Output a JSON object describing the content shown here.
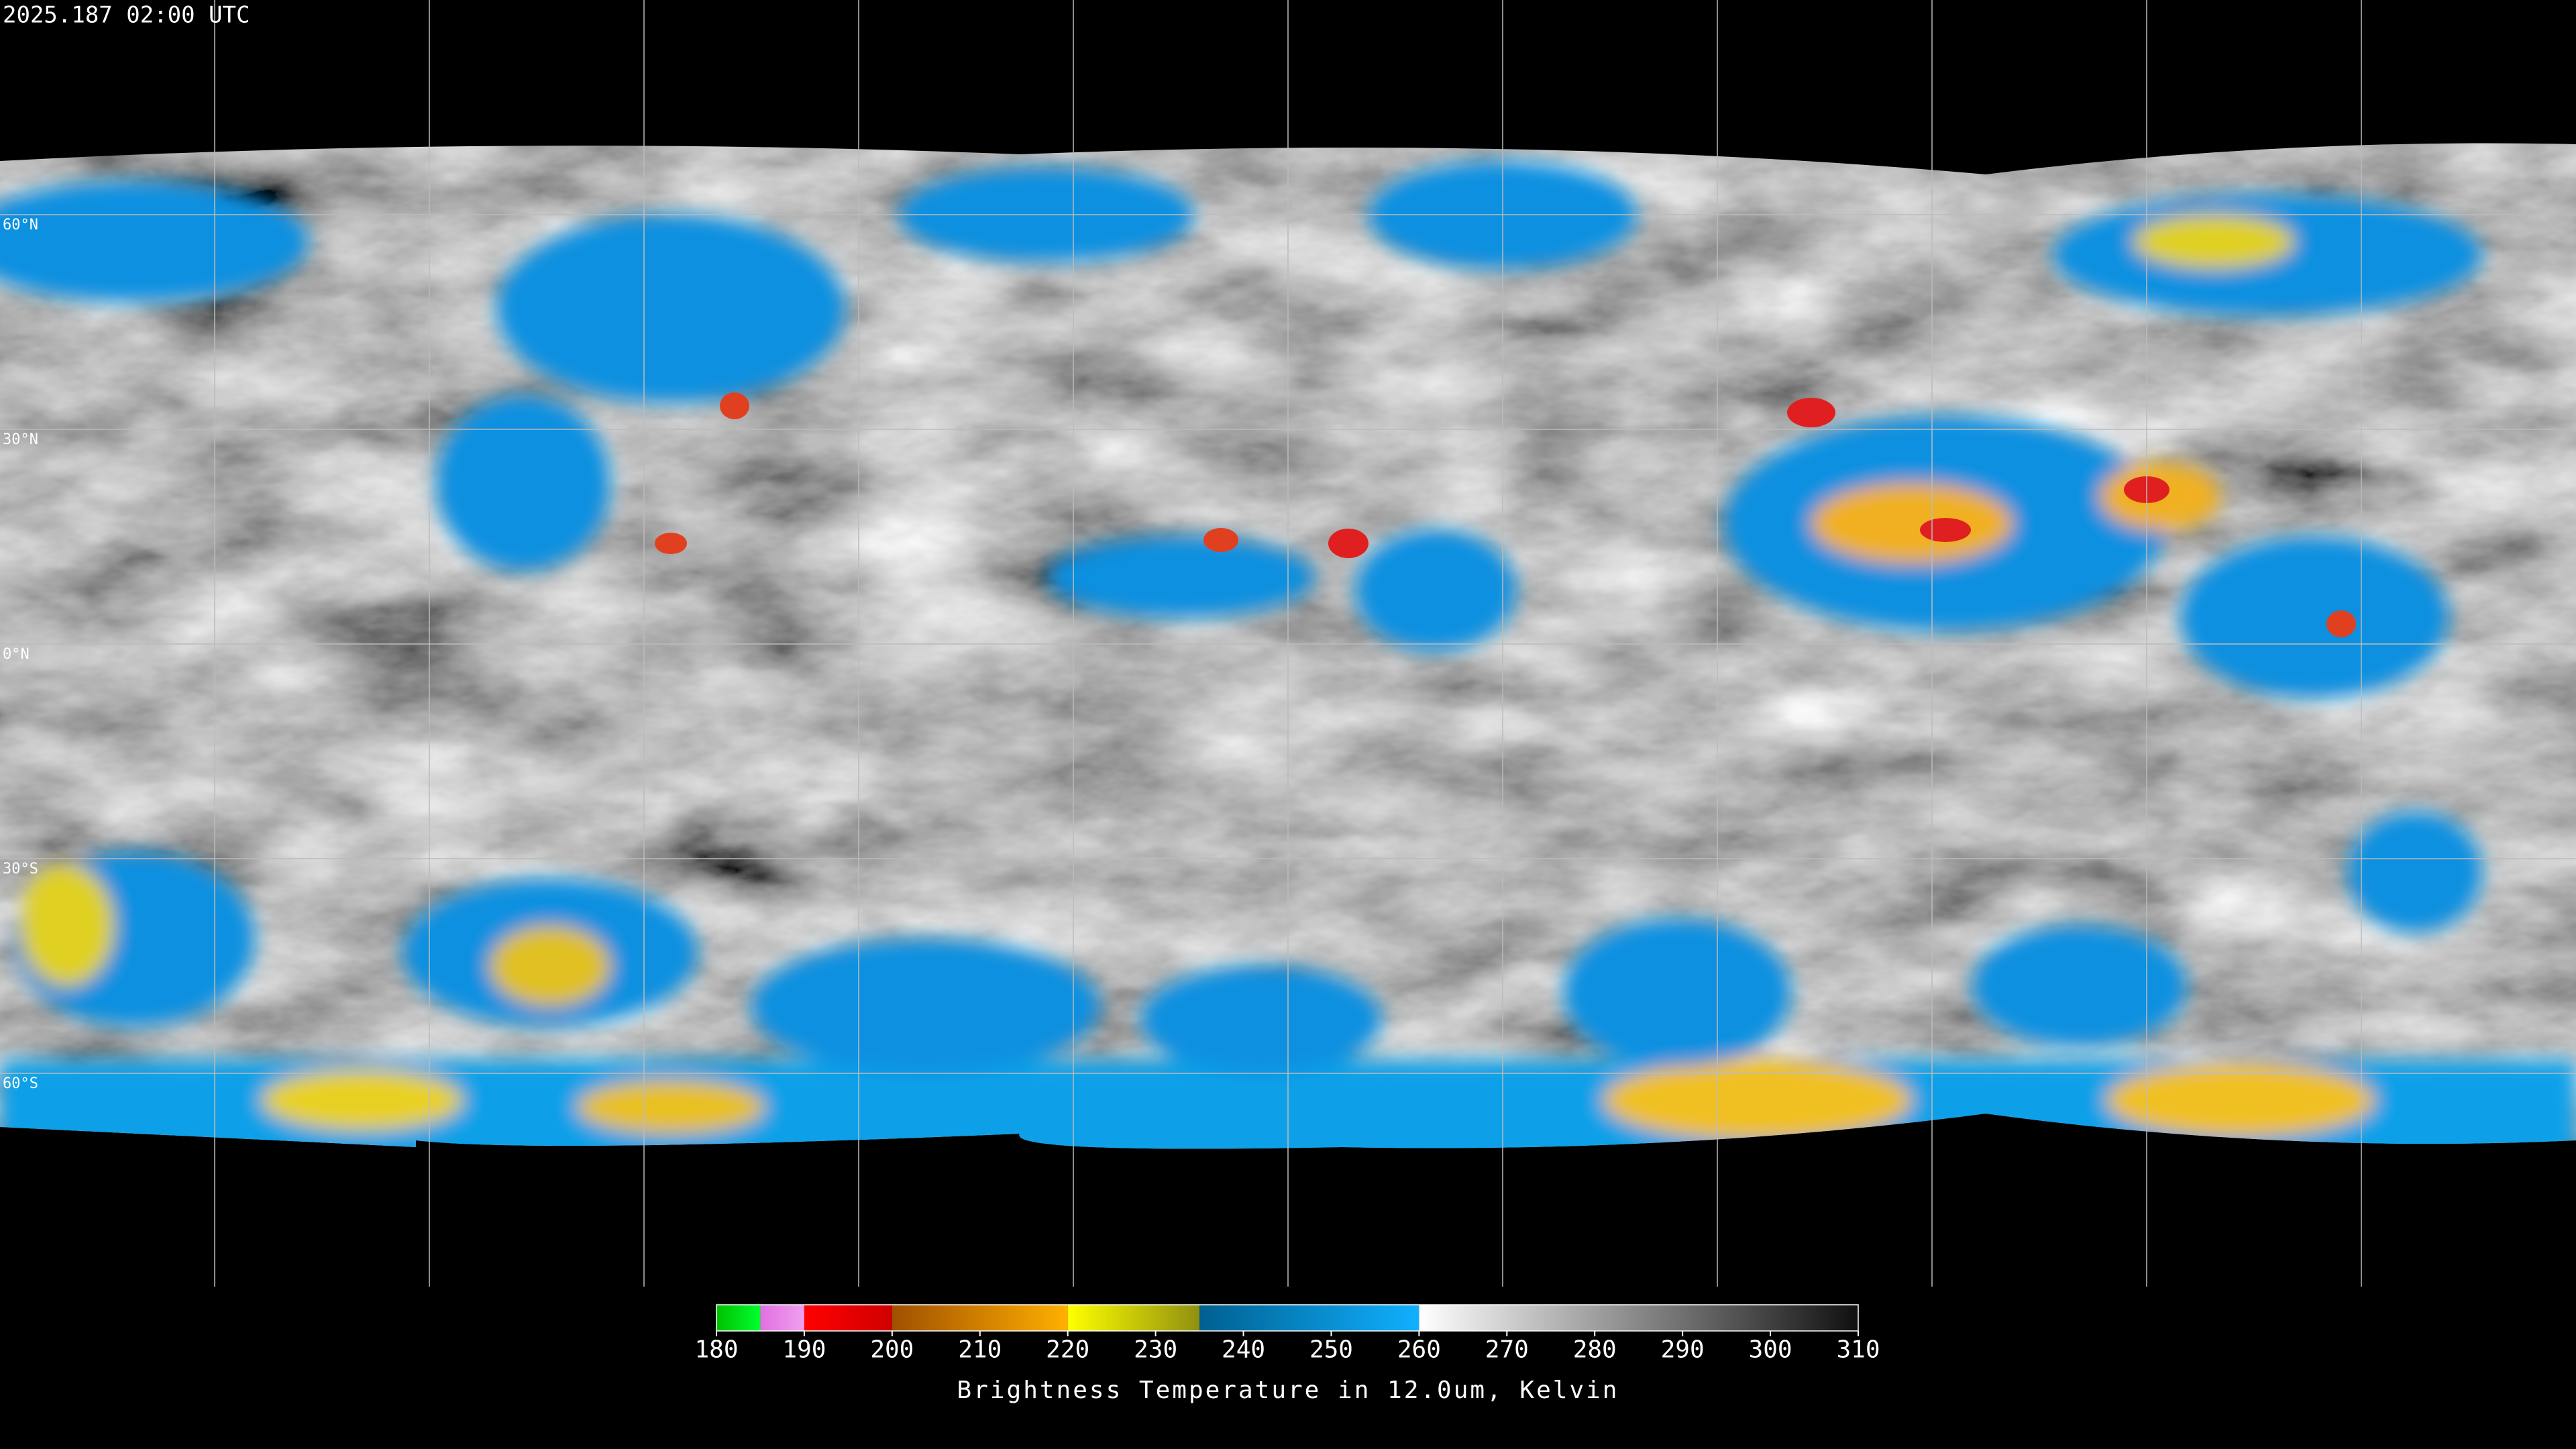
{
  "header": {
    "timestamp": "2025.187 02:00 UTC"
  },
  "map": {
    "projection": "equirectangular",
    "lon_range": [
      -180,
      180
    ],
    "lat_range": [
      90,
      -90
    ],
    "lat_lines": [
      {
        "value": 60,
        "label": "60°N"
      },
      {
        "value": 30,
        "label": "30°N"
      },
      {
        "value": 0,
        "label": "0°N"
      },
      {
        "value": -30,
        "label": "30°S"
      },
      {
        "value": -60,
        "label": "60°S"
      }
    ],
    "lon_lines": [
      -150,
      -120,
      -90,
      -60,
      -30,
      0,
      30,
      60,
      90,
      120,
      150
    ]
  },
  "colorbar": {
    "title": "Brightness Temperature in 12.0um, Kelvin",
    "range": [
      180,
      310
    ],
    "ticks": [
      180,
      190,
      200,
      210,
      220,
      230,
      240,
      250,
      260,
      270,
      280,
      290,
      300,
      310
    ],
    "segments": [
      {
        "range": [
          180,
          185
        ],
        "colors": [
          "#00c000",
          "#00ff30"
        ]
      },
      {
        "range": [
          185,
          190
        ],
        "colors": [
          "#e070e0",
          "#f0a0f0"
        ]
      },
      {
        "range": [
          190,
          200
        ],
        "colors": [
          "#ff0000",
          "#d00000"
        ]
      },
      {
        "range": [
          200,
          220
        ],
        "colors": [
          "#a05000",
          "#ffb000"
        ]
      },
      {
        "range": [
          220,
          235
        ],
        "colors": [
          "#ffff00",
          "#909010"
        ]
      },
      {
        "range": [
          235,
          260
        ],
        "colors": [
          "#006090",
          "#10b0ff"
        ]
      },
      {
        "range": [
          260,
          310
        ],
        "colors": [
          "#ffffff",
          "#101010"
        ]
      }
    ]
  }
}
